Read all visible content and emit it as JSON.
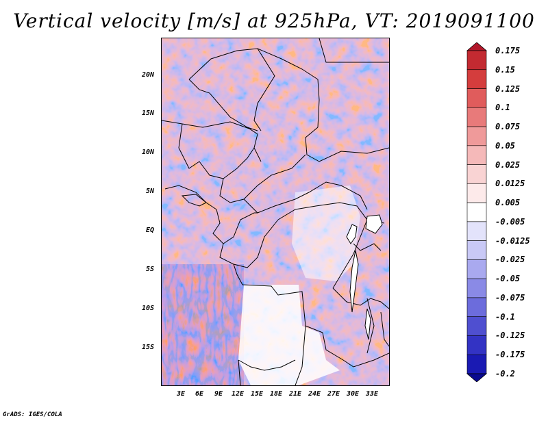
{
  "title": "Vertical velocity [m/s] at 925hPa, VT: 2019091100",
  "footer": "GrADS: IGES/COLA",
  "map": {
    "lat_labels": [
      "20N",
      "15N",
      "10N",
      "5N",
      "EQ",
      "5S",
      "10S",
      "15S"
    ],
    "lon_labels": [
      "3E",
      "6E",
      "9E",
      "12E",
      "15E",
      "18E",
      "21E",
      "24E",
      "27E",
      "30E",
      "33E"
    ]
  },
  "colorbar": {
    "labels": [
      "0.175",
      "0.15",
      "0.125",
      "0.1",
      "0.075",
      "0.05",
      "0.025",
      "0.0125",
      "0.005",
      "-0.005",
      "-0.0125",
      "-0.025",
      "-0.05",
      "-0.075",
      "-0.1",
      "-0.125",
      "-0.175",
      "-0.2"
    ],
    "colors": [
      "#b2182b",
      "#c32a31",
      "#d43d3d",
      "#e05c5c",
      "#e87a7a",
      "#ef9a9a",
      "#f5b9b9",
      "#f9d3d3",
      "#fdeaea",
      "#ffffff",
      "#e3e3fb",
      "#c9c9f6",
      "#a9a9ef",
      "#8a8ae6",
      "#6c6cdc",
      "#4f4fd0",
      "#3333c4",
      "#1a1ab3",
      "#0a0a90"
    ]
  }
}
